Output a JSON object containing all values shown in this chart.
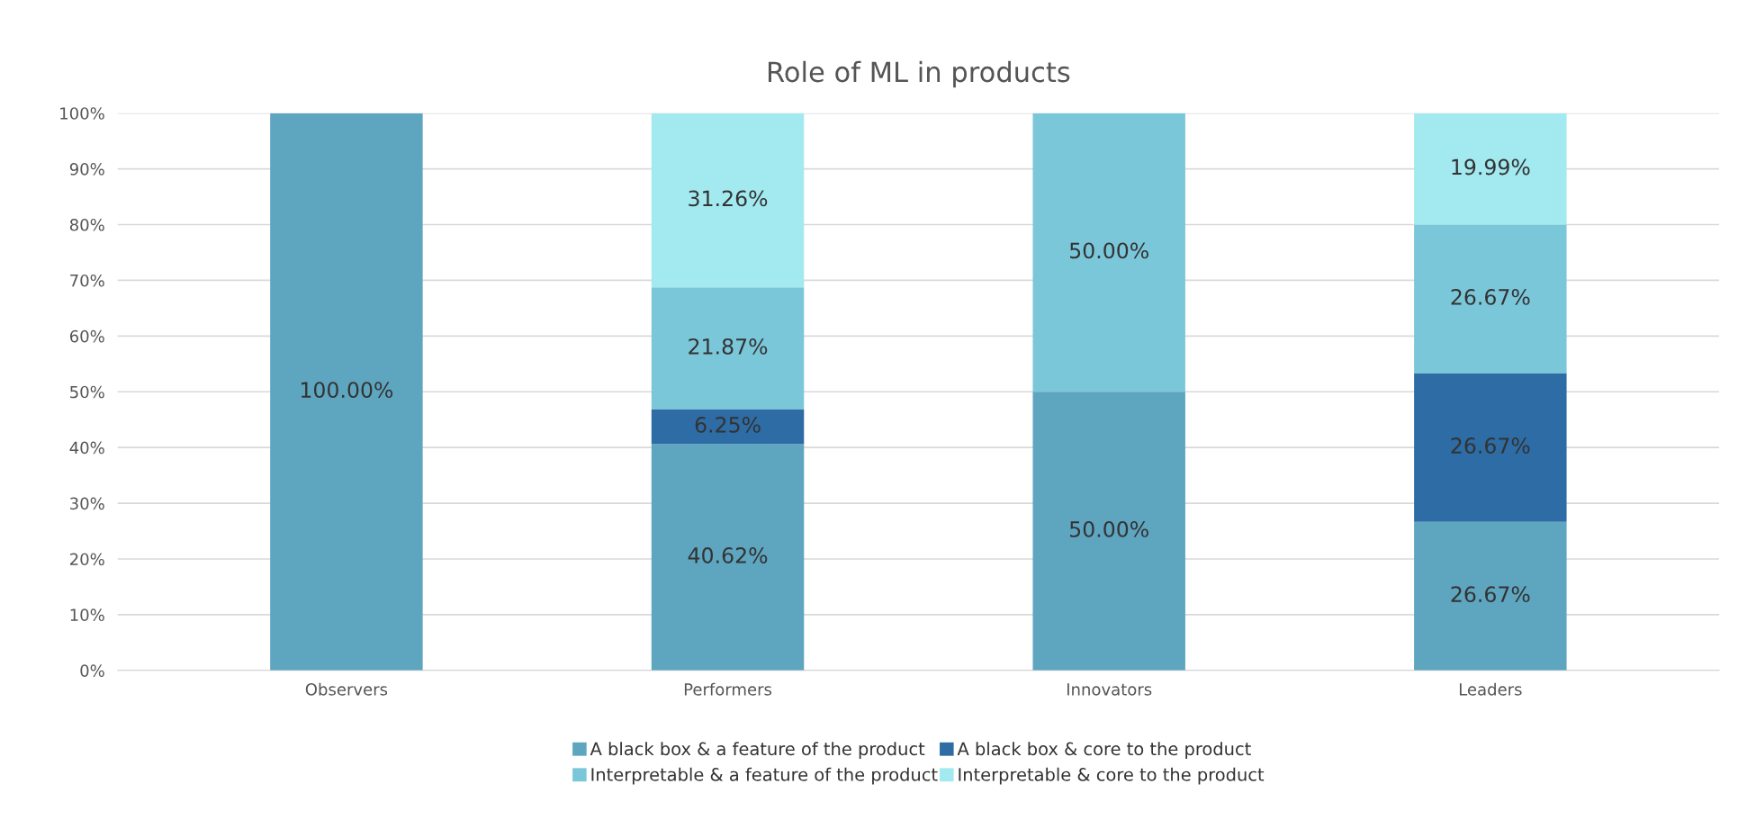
{
  "chart_data": {
    "type": "bar",
    "title": "Role of ML in products",
    "stacked": true,
    "categories": [
      "Observers",
      "Performers",
      "Innovators",
      "Leaders"
    ],
    "series": [
      {
        "name": "A black box & a feature of the product",
        "color": "#5ea5c0",
        "values": [
          100.0,
          40.62,
          50.0,
          26.67
        ],
        "value_labels": [
          "100.00%",
          "40.62%",
          "50.00%",
          "26.67%"
        ]
      },
      {
        "name": "A black box & core to the product",
        "color": "#2d6ca5",
        "values": [
          0,
          6.25,
          0,
          26.67
        ],
        "value_labels": [
          null,
          "6.25%",
          null,
          "26.67%"
        ]
      },
      {
        "name": "Interpretable & a feature of the product",
        "color": "#7bc7da",
        "values": [
          0,
          21.87,
          50.0,
          26.67
        ],
        "value_labels": [
          null,
          "21.87%",
          "50.00%",
          "26.67%"
        ]
      },
      {
        "name": "Interpretable & core to the product",
        "color": "#a2eaf0",
        "values": [
          0,
          31.26,
          0,
          19.99
        ],
        "value_labels": [
          null,
          "31.26%",
          null,
          "19.99%"
        ]
      }
    ],
    "ylim": [
      0,
      100
    ],
    "yticks": [
      {
        "value": 0,
        "label": "0%"
      },
      {
        "value": 10,
        "label": "10%"
      },
      {
        "value": 20,
        "label": "20%"
      },
      {
        "value": 30,
        "label": "30%"
      },
      {
        "value": 40,
        "label": "40%"
      },
      {
        "value": 50,
        "label": "50%"
      },
      {
        "value": 60,
        "label": "60%"
      },
      {
        "value": 70,
        "label": "70%"
      },
      {
        "value": 80,
        "label": "80%"
      },
      {
        "value": 90,
        "label": "90%"
      },
      {
        "value": 100,
        "label": "100%"
      }
    ],
    "grid": "y",
    "legend": "bottom"
  }
}
